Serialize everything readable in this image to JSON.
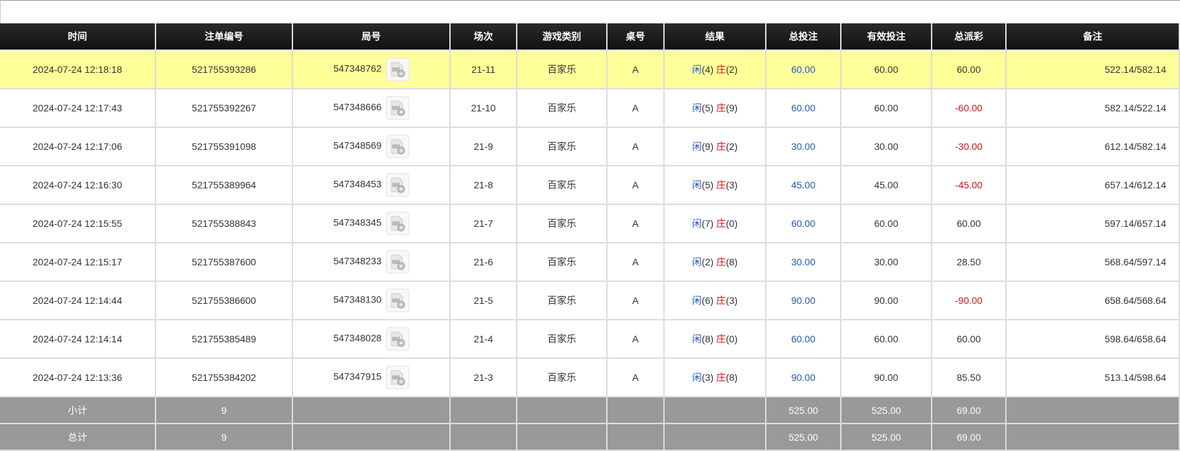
{
  "headers": [
    "时间",
    "注单编号",
    "局号",
    "场次",
    "游戏类别",
    "桌号",
    "结果",
    "总投注",
    "有效投注",
    "总派彩",
    "备注"
  ],
  "rows": [
    {
      "time": "2024-07-24 12:18:18",
      "bet_id": "521755393286",
      "round": "547348762",
      "session": "21-11",
      "game": "百家乐",
      "table": "A",
      "player": "闲",
      "player_pts": "(4)",
      "banker": "庄",
      "banker_pts": "(2)",
      "total": "60.00",
      "valid": "60.00",
      "payout": "60.00",
      "payout_neg": false,
      "note": "522.14/582.14",
      "highlight": true
    },
    {
      "time": "2024-07-24 12:17:43",
      "bet_id": "521755392267",
      "round": "547348666",
      "session": "21-10",
      "game": "百家乐",
      "table": "A",
      "player": "闲",
      "player_pts": "(5)",
      "banker": "庄",
      "banker_pts": "(9)",
      "total": "60.00",
      "valid": "60.00",
      "payout": "-60.00",
      "payout_neg": true,
      "note": "582.14/522.14"
    },
    {
      "time": "2024-07-24 12:17:06",
      "bet_id": "521755391098",
      "round": "547348569",
      "session": "21-9",
      "game": "百家乐",
      "table": "A",
      "player": "闲",
      "player_pts": "(9)",
      "banker": "庄",
      "banker_pts": "(2)",
      "total": "30.00",
      "valid": "30.00",
      "payout": "-30.00",
      "payout_neg": true,
      "note": "612.14/582.14"
    },
    {
      "time": "2024-07-24 12:16:30",
      "bet_id": "521755389964",
      "round": "547348453",
      "session": "21-8",
      "game": "百家乐",
      "table": "A",
      "player": "闲",
      "player_pts": "(5)",
      "banker": "庄",
      "banker_pts": "(3)",
      "total": "45.00",
      "valid": "45.00",
      "payout": "-45.00",
      "payout_neg": true,
      "note": "657.14/612.14"
    },
    {
      "time": "2024-07-24 12:15:55",
      "bet_id": "521755388843",
      "round": "547348345",
      "session": "21-7",
      "game": "百家乐",
      "table": "A",
      "player": "闲",
      "player_pts": "(7)",
      "banker": "庄",
      "banker_pts": "(0)",
      "total": "60.00",
      "valid": "60.00",
      "payout": "60.00",
      "payout_neg": false,
      "note": "597.14/657.14"
    },
    {
      "time": "2024-07-24 12:15:17",
      "bet_id": "521755387600",
      "round": "547348233",
      "session": "21-6",
      "game": "百家乐",
      "table": "A",
      "player": "闲",
      "player_pts": "(2)",
      "banker": "庄",
      "banker_pts": "(8)",
      "total": "30.00",
      "valid": "30.00",
      "payout": "28.50",
      "payout_neg": false,
      "note": "568.64/597.14"
    },
    {
      "time": "2024-07-24 12:14:44",
      "bet_id": "521755386600",
      "round": "547348130",
      "session": "21-5",
      "game": "百家乐",
      "table": "A",
      "player": "闲",
      "player_pts": "(6)",
      "banker": "庄",
      "banker_pts": "(3)",
      "total": "90.00",
      "valid": "90.00",
      "payout": "-90.00",
      "payout_neg": true,
      "note": "658.64/568.64"
    },
    {
      "time": "2024-07-24 12:14:14",
      "bet_id": "521755385489",
      "round": "547348028",
      "session": "21-4",
      "game": "百家乐",
      "table": "A",
      "player": "闲",
      "player_pts": "(8)",
      "banker": "庄",
      "banker_pts": "(0)",
      "total": "60.00",
      "valid": "60.00",
      "payout": "60.00",
      "payout_neg": false,
      "note": "598.64/658.64"
    },
    {
      "time": "2024-07-24 12:13:36",
      "bet_id": "521755384202",
      "round": "547347915",
      "session": "21-3",
      "game": "百家乐",
      "table": "A",
      "player": "闲",
      "player_pts": "(3)",
      "banker": "庄",
      "banker_pts": "(8)",
      "total": "90.00",
      "valid": "90.00",
      "payout": "85.50",
      "payout_neg": false,
      "note": "513.14/598.64"
    }
  ],
  "summary": [
    {
      "label": "小计",
      "count": "9",
      "total": "525.00",
      "valid": "525.00",
      "payout": "69.00"
    },
    {
      "label": "总计",
      "count": "9",
      "total": "525.00",
      "valid": "525.00",
      "payout": "69.00"
    }
  ],
  "colors": {
    "highlight": "#ffff99",
    "player": "#2255cc",
    "banker": "#dd1111",
    "negative": "#dd1111",
    "total_bet": "#2255cc"
  }
}
